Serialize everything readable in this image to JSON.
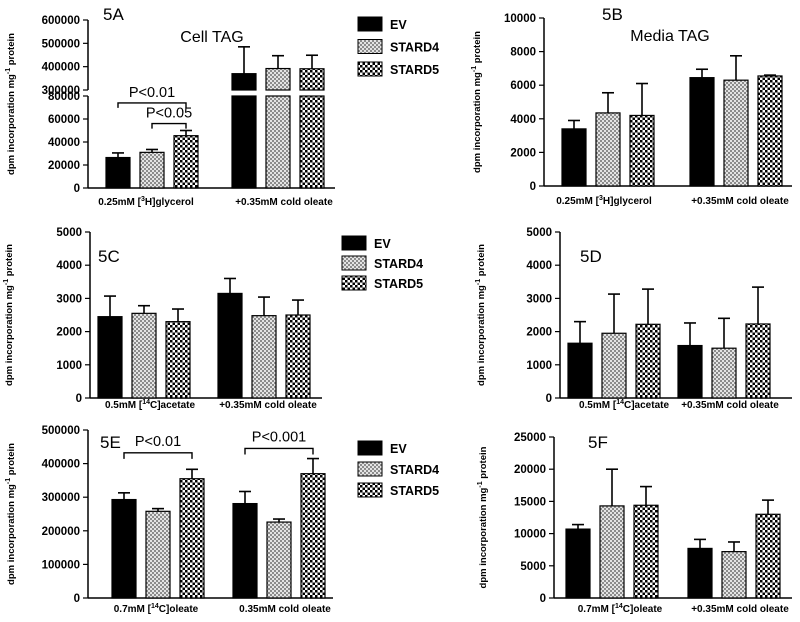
{
  "figure": {
    "series_names": [
      "EV",
      "STARD4",
      "STARD5"
    ],
    "colors": {
      "ev": "#000000",
      "stard4_light": "#e4e4e4",
      "stard4_dark": "#8c8c8c",
      "stard5_light": "#ffffff",
      "stard5_dark": "#000000"
    },
    "ylabel_main": "dpm incorporation mg",
    "ylabel_sup": "-1",
    "ylabel_tail": " protein"
  },
  "chart_data": [
    {
      "id": "5A",
      "type": "bar",
      "panel_label": "5A",
      "title": "Cell TAG",
      "ylabel": "dpm incorporation mg-1 protein",
      "categories": [
        {
          "pre": "0.25mM [",
          "sup": "3",
          "post": "H]glycerol"
        },
        {
          "pre": "+0.35mM cold oleate",
          "sup": "",
          "post": ""
        }
      ],
      "series": [
        {
          "name": "EV",
          "values": [
            26500,
            370000
          ],
          "errors": [
            4000,
            115000
          ]
        },
        {
          "name": "STARD4",
          "values": [
            31000,
            392000
          ],
          "errors": [
            2500,
            55000
          ]
        },
        {
          "name": "STARD5",
          "values": [
            45500,
            391000
          ],
          "errors": [
            4500,
            58000
          ]
        }
      ],
      "ylim_lower": [
        0,
        80000
      ],
      "yticks_lower": [
        0,
        20000,
        40000,
        60000,
        80000
      ],
      "ylim_upper": [
        300000,
        600000
      ],
      "yticks_upper": [
        300000,
        400000,
        500000,
        600000
      ],
      "axis_break": true,
      "annotations": [
        {
          "text": "P<0.01",
          "group": 0,
          "from": 0,
          "to": 2,
          "level": 74000
        },
        {
          "text": "P<0.05",
          "group": 0,
          "from": 1,
          "to": 2,
          "level": 56000
        }
      ],
      "legend": [
        "EV",
        "STARD4",
        "STARD5"
      ]
    },
    {
      "id": "5B",
      "type": "bar",
      "panel_label": "5B",
      "title": "Media TAG",
      "ylabel": "dpm incorporation mg-1 protein",
      "categories": [
        {
          "pre": "0.25mM [",
          "sup": "3",
          "post": "H]glycerol"
        },
        {
          "pre": "+0.35mM cold oleate",
          "sup": "",
          "post": ""
        }
      ],
      "series": [
        {
          "name": "EV",
          "values": [
            3400,
            6450
          ],
          "errors": [
            500,
            500
          ]
        },
        {
          "name": "STARD4",
          "values": [
            4350,
            6300
          ],
          "errors": [
            1200,
            1450
          ]
        },
        {
          "name": "STARD5",
          "values": [
            4200,
            6550
          ],
          "errors": [
            1900,
            50
          ]
        }
      ],
      "ylim": [
        0,
        10000
      ],
      "yticks": [
        0,
        2000,
        4000,
        6000,
        8000,
        10000
      ],
      "annotations": [],
      "legend": []
    },
    {
      "id": "5C",
      "type": "bar",
      "panel_label": "5C",
      "title": "",
      "ylabel": "dpm incorporation mg-1 protein",
      "categories": [
        {
          "pre": "0.5mM [",
          "sup": "14",
          "post": "C]acetate"
        },
        {
          "pre": "+0.35mM cold oleate",
          "sup": "",
          "post": ""
        }
      ],
      "series": [
        {
          "name": "EV",
          "values": [
            2450,
            3150
          ],
          "errors": [
            620,
            450
          ]
        },
        {
          "name": "STARD4",
          "values": [
            2550,
            2480
          ],
          "errors": [
            230,
            560
          ]
        },
        {
          "name": "STARD5",
          "values": [
            2300,
            2500
          ],
          "errors": [
            380,
            450
          ]
        }
      ],
      "ylim": [
        0,
        5000
      ],
      "yticks": [
        0,
        1000,
        2000,
        3000,
        4000,
        5000
      ],
      "annotations": [],
      "legend": [
        "EV",
        "STARD4",
        "STARD5"
      ]
    },
    {
      "id": "5D",
      "type": "bar",
      "panel_label": "5D",
      "title": "",
      "ylabel": "dpm incorporation mg-1 protein",
      "categories": [
        {
          "pre": "0.5mM [",
          "sup": "14",
          "post": "C]acetate"
        },
        {
          "pre": "+0.35mM cold oleate",
          "sup": "",
          "post": ""
        }
      ],
      "series": [
        {
          "name": "EV",
          "values": [
            1650,
            1580
          ],
          "errors": [
            650,
            680
          ]
        },
        {
          "name": "STARD4",
          "values": [
            1950,
            1500
          ],
          "errors": [
            1180,
            900
          ]
        },
        {
          "name": "STARD5",
          "values": [
            2220,
            2230
          ],
          "errors": [
            1060,
            1110
          ]
        }
      ],
      "ylim": [
        0,
        5000
      ],
      "yticks": [
        0,
        1000,
        2000,
        3000,
        4000,
        5000
      ],
      "annotations": [],
      "legend": []
    },
    {
      "id": "5E",
      "type": "bar",
      "panel_label": "5E",
      "title": "",
      "ylabel": "dpm incorporation mg-1 protein",
      "categories": [
        {
          "pre": "0.7mM [",
          "sup": "14",
          "post": "C]oleate"
        },
        {
          "pre": "0.35mM cold oleate",
          "sup": "",
          "post": ""
        }
      ],
      "series": [
        {
          "name": "EV",
          "values": [
            293000,
            281000
          ],
          "errors": [
            20000,
            36000
          ]
        },
        {
          "name": "STARD4",
          "values": [
            258000,
            226000
          ],
          "errors": [
            8000,
            9000
          ]
        },
        {
          "name": "STARD5",
          "values": [
            355000,
            370000
          ],
          "errors": [
            28000,
            45000
          ]
        }
      ],
      "ylim": [
        0,
        500000
      ],
      "yticks": [
        0,
        100000,
        200000,
        300000,
        400000,
        500000
      ],
      "annotations": [
        {
          "text": "P<0.01",
          "group": 0,
          "from": 0,
          "to": 2,
          "level": 432000
        },
        {
          "text": "P<0.001",
          "group": 1,
          "from": 0,
          "to": 2,
          "level": 445000
        }
      ],
      "legend": [
        "EV",
        "STARD4",
        "STARD5"
      ]
    },
    {
      "id": "5F",
      "type": "bar",
      "panel_label": "5F",
      "title": "",
      "ylabel": "dpm incorporation mg-1 protein",
      "categories": [
        {
          "pre": "0.7mM [",
          "sup": "14",
          "post": "C]oleate"
        },
        {
          "pre": "+0.35mM cold oleate",
          "sup": "",
          "post": ""
        }
      ],
      "series": [
        {
          "name": "EV",
          "values": [
            10700,
            7700
          ],
          "errors": [
            700,
            1400
          ]
        },
        {
          "name": "STARD4",
          "values": [
            14300,
            7200
          ],
          "errors": [
            5700,
            1500
          ]
        },
        {
          "name": "STARD5",
          "values": [
            14400,
            13000
          ],
          "errors": [
            2900,
            2200
          ]
        }
      ],
      "ylim": [
        0,
        25000
      ],
      "yticks": [
        0,
        5000,
        10000,
        15000,
        20000,
        25000
      ],
      "annotations": [],
      "legend": []
    }
  ]
}
